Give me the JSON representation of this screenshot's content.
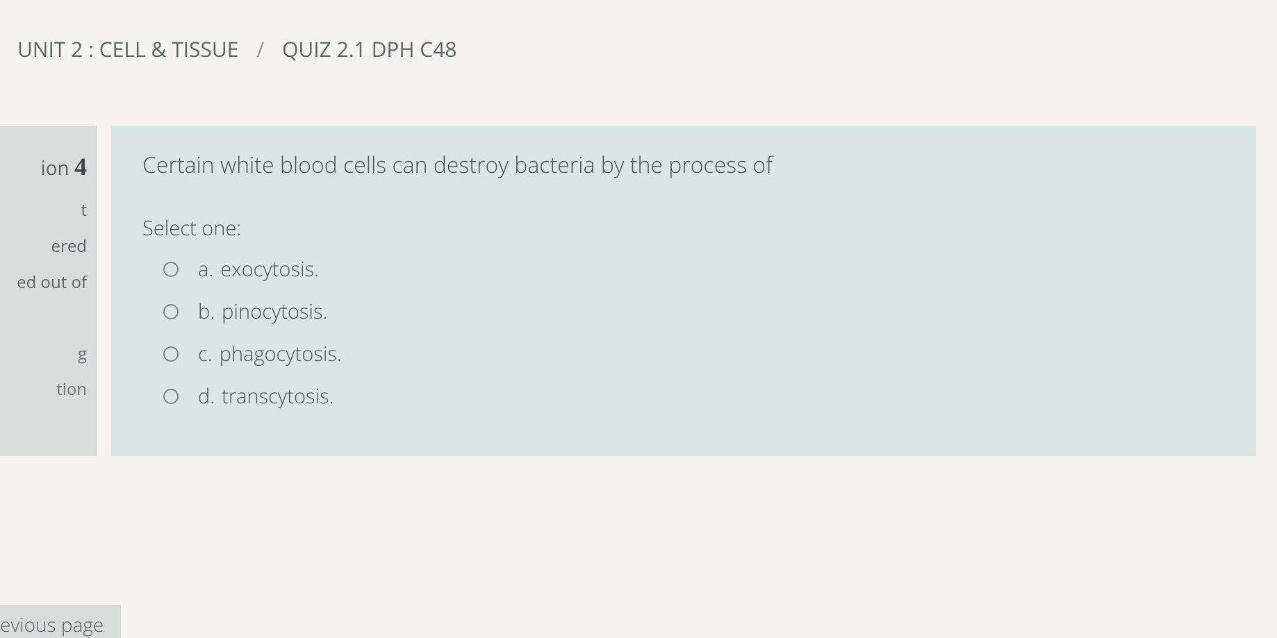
{
  "breadcrumb": {
    "unit": "UNIT 2 : CELL & TISSUE",
    "quiz": "QUIZ 2.1 DPH C48"
  },
  "sidebar": {
    "question_prefix": "ion",
    "question_number": "4",
    "line1": "t",
    "line2": "ered",
    "line3": "ed out of",
    "flag_line1": "g",
    "flag_line2": "tion"
  },
  "question": {
    "text": "Certain white blood cells can destroy bacteria by the process of",
    "select_label": "Select one:",
    "options": [
      {
        "letter": "a.",
        "text": "exocytosis."
      },
      {
        "letter": "b.",
        "text": "pinocytosis."
      },
      {
        "letter": "c.",
        "text": "phagocytosis."
      },
      {
        "letter": "d.",
        "text": "transcytosis."
      }
    ]
  },
  "nav": {
    "previous": "evious page"
  },
  "colors": {
    "page_bg": "#f5f3ef",
    "sidebar_bg": "#d8dcdb",
    "panel_bg": "#d9e6e3",
    "text": "#4a5558"
  }
}
